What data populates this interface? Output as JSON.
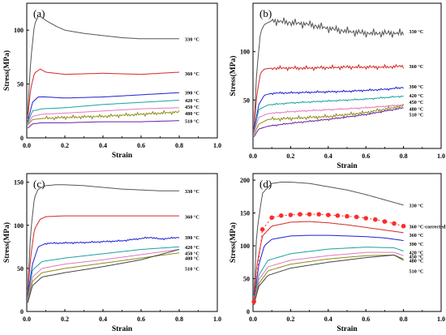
{
  "figure": {
    "panels": [
      {
        "label": "(a)"
      },
      {
        "label": "(b)"
      },
      {
        "label": "(c)"
      },
      {
        "label": "(d)"
      }
    ]
  },
  "chart_data": [
    {
      "type": "line",
      "panel_label": "(a)",
      "xlabel": "Strain",
      "ylabel": "Stress(MPa)",
      "xlim": [
        0.0,
        1.0
      ],
      "ylim": [
        0,
        125
      ],
      "xticks": [
        "0.0",
        "0.2",
        "0.4",
        "0.6",
        "0.8",
        "1.0"
      ],
      "yticks": [
        "0",
        "50",
        "100"
      ],
      "ytick_values": [
        0,
        50,
        100
      ],
      "grid": false,
      "legend": "labels at right end of curves",
      "series": [
        {
          "name": "330 °C",
          "color": "#555555",
          "noise": 0,
          "x": [
            0.005,
            0.02,
            0.04,
            0.06,
            0.08,
            0.1,
            0.15,
            0.2,
            0.3,
            0.4,
            0.5,
            0.6,
            0.7,
            0.8
          ],
          "y": [
            22,
            70,
            105,
            113,
            112,
            109,
            104,
            100,
            97,
            95,
            93,
            92,
            92,
            92
          ]
        },
        {
          "name": "360 °C",
          "color": "#d62728",
          "noise": 0,
          "x": [
            0.005,
            0.02,
            0.04,
            0.07,
            0.1,
            0.2,
            0.4,
            0.6,
            0.8
          ],
          "y": [
            18,
            45,
            60,
            64,
            61,
            59,
            60,
            59,
            61
          ]
        },
        {
          "name": "390 °C",
          "color": "#1f1fd6",
          "noise": 0,
          "x": [
            0.005,
            0.03,
            0.06,
            0.1,
            0.2,
            0.4,
            0.6,
            0.8
          ],
          "y": [
            15,
            33,
            38,
            38,
            37,
            38,
            40,
            42
          ]
        },
        {
          "name": "420 °C",
          "color": "#17a2a2",
          "noise": 0,
          "x": [
            0.005,
            0.03,
            0.08,
            0.2,
            0.4,
            0.6,
            0.8
          ],
          "y": [
            14,
            25,
            27,
            28,
            31,
            33,
            35
          ]
        },
        {
          "name": "450 °C",
          "color": "#e377c2",
          "noise": 0,
          "x": [
            0.005,
            0.03,
            0.08,
            0.2,
            0.4,
            0.6,
            0.8
          ],
          "y": [
            13,
            20,
            22,
            23,
            25,
            27,
            28
          ]
        },
        {
          "name": "480 °C",
          "color": "#8c8c1a",
          "noise": 1.2,
          "x": [
            0.005,
            0.03,
            0.08,
            0.2,
            0.4,
            0.6,
            0.8
          ],
          "y": [
            12,
            17,
            18,
            19,
            20,
            22,
            24
          ]
        },
        {
          "name": "510 °C",
          "color": "#6a1fa8",
          "noise": 0,
          "x": [
            0.005,
            0.03,
            0.08,
            0.2,
            0.4,
            0.6,
            0.8
          ],
          "y": [
            9,
            13,
            14,
            14,
            15,
            15,
            16
          ]
        }
      ],
      "labels": [
        {
          "text": "330 °C",
          "y": 92
        },
        {
          "text": "360 °C",
          "y": 60
        },
        {
          "text": "390 °C",
          "y": 42
        },
        {
          "text": "420 °C",
          "y": 35
        },
        {
          "text": "450 °C",
          "y": 29
        },
        {
          "text": "480 °C",
          "y": 23
        },
        {
          "text": "510 °C",
          "y": 16
        }
      ]
    },
    {
      "type": "line",
      "panel_label": "(b)",
      "xlabel": "Strain",
      "ylabel": "Stress(MPa)",
      "xlim": [
        0.0,
        1.0
      ],
      "ylim": [
        0,
        150
      ],
      "xticks": [
        "0.0",
        "0.2",
        "0.4",
        "0.6",
        "0.8",
        "1.0"
      ],
      "yticks": [
        "50",
        "100"
      ],
      "ytick_values": [
        50,
        100
      ],
      "grid": false,
      "legend": "labels at right end of curves",
      "series": [
        {
          "name": "330 °C",
          "color": "#555555",
          "noise": 3,
          "x": [
            0.005,
            0.02,
            0.04,
            0.06,
            0.1,
            0.15,
            0.2,
            0.3,
            0.4,
            0.5,
            0.6,
            0.7,
            0.8
          ],
          "y": [
            20,
            80,
            120,
            128,
            132,
            131,
            130,
            128,
            124,
            121,
            119,
            119,
            119
          ]
        },
        {
          "name": "360 °C",
          "color": "#d62728",
          "noise": 1.5,
          "x": [
            0.005,
            0.02,
            0.04,
            0.06,
            0.1,
            0.3,
            0.5,
            0.7,
            0.8
          ],
          "y": [
            20,
            55,
            78,
            82,
            83,
            83,
            84,
            84,
            85
          ]
        },
        {
          "name": "390 °C",
          "color": "#1f1fd6",
          "noise": 0.8,
          "x": [
            0.005,
            0.03,
            0.06,
            0.1,
            0.3,
            0.5,
            0.7,
            0.8
          ],
          "y": [
            18,
            45,
            55,
            57,
            58,
            59,
            61,
            63
          ]
        },
        {
          "name": "420 °C",
          "color": "#17a2a2",
          "noise": 0.6,
          "x": [
            0.005,
            0.03,
            0.08,
            0.2,
            0.4,
            0.6,
            0.8
          ],
          "y": [
            17,
            40,
            45,
            47,
            49,
            51,
            54
          ]
        },
        {
          "name": "450 °C",
          "color": "#e377c2",
          "noise": 0.6,
          "x": [
            0.005,
            0.03,
            0.08,
            0.2,
            0.4,
            0.6,
            0.8
          ],
          "y": [
            16,
            32,
            36,
            38,
            40,
            42,
            45
          ]
        },
        {
          "name": "480 °C",
          "color": "#8c8c1a",
          "noise": 1.4,
          "x": [
            0.005,
            0.03,
            0.08,
            0.2,
            0.4,
            0.6,
            0.8
          ],
          "y": [
            14,
            25,
            30,
            31,
            33,
            37,
            44
          ]
        },
        {
          "name": "510 °C",
          "color": "#6a1fa8",
          "noise": 0.6,
          "x": [
            0.005,
            0.03,
            0.08,
            0.2,
            0.4,
            0.6,
            0.8
          ],
          "y": [
            12,
            20,
            23,
            26,
            30,
            35,
            42
          ]
        }
      ],
      "labels": [
        {
          "text": "330 °C",
          "y": 121
        },
        {
          "text": "360 °C",
          "y": 85
        },
        {
          "text": "390 °C",
          "y": 64
        },
        {
          "text": "420 °C",
          "y": 55
        },
        {
          "text": "450 °C",
          "y": 48
        },
        {
          "text": "480 °C",
          "y": 41
        },
        {
          "text": "510 °C",
          "y": 35
        }
      ]
    },
    {
      "type": "line",
      "panel_label": "(c)",
      "xlabel": "Strain",
      "ylabel": "Stress(MPa)",
      "xlim": [
        0.0,
        1.0
      ],
      "ylim": [
        0,
        160
      ],
      "xticks": [
        "0.0",
        "0.2",
        "0.4",
        "0.6",
        "0.8",
        "1.0"
      ],
      "yticks": [
        "0",
        "50",
        "100",
        "150"
      ],
      "ytick_values": [
        0,
        50,
        100,
        150
      ],
      "grid": false,
      "legend": "labels at right end of curves",
      "series": [
        {
          "name": "330 °C",
          "color": "#555555",
          "noise": 0,
          "x": [
            0.005,
            0.02,
            0.04,
            0.06,
            0.1,
            0.15,
            0.2,
            0.3,
            0.4,
            0.5,
            0.6,
            0.7,
            0.8
          ],
          "y": [
            25,
            90,
            132,
            142,
            146,
            147,
            147,
            146,
            144,
            142,
            141,
            140,
            140
          ]
        },
        {
          "name": "360 °C",
          "color": "#d62728",
          "noise": 0,
          "x": [
            0.005,
            0.02,
            0.04,
            0.07,
            0.1,
            0.2,
            0.3,
            0.5,
            0.7,
            0.8
          ],
          "y": [
            20,
            62,
            95,
            107,
            110,
            111,
            111,
            111,
            111,
            111
          ]
        },
        {
          "name": "390 °C",
          "color": "#1f1fd6",
          "noise": 0.7,
          "x": [
            0.005,
            0.03,
            0.06,
            0.1,
            0.3,
            0.5,
            0.65,
            0.7,
            0.8
          ],
          "y": [
            18,
            55,
            75,
            79,
            80,
            82,
            86,
            84,
            86
          ]
        },
        {
          "name": "420 °C",
          "color": "#17a2a2",
          "noise": 0,
          "x": [
            0.005,
            0.03,
            0.08,
            0.2,
            0.4,
            0.6,
            0.8
          ],
          "y": [
            16,
            48,
            58,
            62,
            67,
            72,
            75
          ]
        },
        {
          "name": "450 °C",
          "color": "#e377c2",
          "noise": 0,
          "x": [
            0.005,
            0.03,
            0.08,
            0.2,
            0.4,
            0.6,
            0.8
          ],
          "y": [
            14,
            40,
            50,
            55,
            60,
            66,
            72
          ]
        },
        {
          "name": "480 °C",
          "color": "#8c8c1a",
          "noise": 0,
          "x": [
            0.005,
            0.03,
            0.08,
            0.2,
            0.4,
            0.6,
            0.8
          ],
          "y": [
            12,
            35,
            45,
            50,
            56,
            62,
            68
          ]
        },
        {
          "name": "510 °C",
          "color": "#444444",
          "noise": 0,
          "x": [
            0.005,
            0.03,
            0.08,
            0.2,
            0.4,
            0.6,
            0.8
          ],
          "y": [
            10,
            30,
            40,
            45,
            52,
            60,
            72
          ]
        }
      ],
      "labels": [
        {
          "text": "330 °C",
          "y": 140
        },
        {
          "text": "360 °C",
          "y": 110
        },
        {
          "text": "390 °C",
          "y": 86
        },
        {
          "text": "420 °C",
          "y": 75
        },
        {
          "text": "450 °C",
          "y": 68
        },
        {
          "text": "480 °C",
          "y": 62
        },
        {
          "text": "510 °C",
          "y": 50
        }
      ]
    },
    {
      "type": "line",
      "panel_label": "(d)",
      "xlabel": "Strain",
      "ylabel": "Stress(MPa)",
      "xlim": [
        0.0,
        1.0
      ],
      "ylim": [
        0,
        210
      ],
      "xticks": [
        "0.0",
        "0.2",
        "0.4",
        "0.6",
        "0.8",
        "1.0"
      ],
      "yticks": [
        "0",
        "50",
        "100",
        "150",
        "200"
      ],
      "ytick_values": [
        0,
        50,
        100,
        150,
        200
      ],
      "grid": false,
      "legend": "labels at right end of curves",
      "series": [
        {
          "name": "330 °C",
          "color": "#555555",
          "noise": 0,
          "x": [
            0.005,
            0.02,
            0.05,
            0.1,
            0.15,
            0.2,
            0.3,
            0.4,
            0.5,
            0.6,
            0.7,
            0.8
          ],
          "y": [
            25,
            120,
            180,
            195,
            197,
            197,
            195,
            190,
            185,
            178,
            170,
            162
          ]
        },
        {
          "name": "360 °C",
          "color": "#d62728",
          "noise": 0,
          "x": [
            0.005,
            0.02,
            0.05,
            0.1,
            0.2,
            0.3,
            0.4,
            0.5,
            0.6,
            0.7,
            0.8
          ],
          "y": [
            15,
            70,
            115,
            130,
            136,
            137,
            135,
            132,
            128,
            124,
            120
          ]
        },
        {
          "name": "390 °C",
          "color": "#1f1fd6",
          "noise": 0,
          "x": [
            0.005,
            0.03,
            0.06,
            0.1,
            0.2,
            0.3,
            0.4,
            0.5,
            0.6,
            0.7,
            0.8
          ],
          "y": [
            15,
            70,
            100,
            110,
            115,
            116,
            116,
            115,
            114,
            112,
            108
          ]
        },
        {
          "name": "420 °C",
          "color": "#17a2a2",
          "noise": 0,
          "x": [
            0.005,
            0.03,
            0.08,
            0.2,
            0.4,
            0.6,
            0.75,
            0.8
          ],
          "y": [
            14,
            55,
            78,
            88,
            95,
            98,
            97,
            92
          ]
        },
        {
          "name": "450 °C",
          "color": "#e377c2",
          "noise": 0,
          "x": [
            0.005,
            0.03,
            0.08,
            0.2,
            0.4,
            0.6,
            0.75,
            0.8
          ],
          "y": [
            12,
            48,
            68,
            78,
            85,
            90,
            90,
            85
          ]
        },
        {
          "name": "480 °C",
          "color": "#8c8c1a",
          "noise": 0,
          "x": [
            0.005,
            0.03,
            0.08,
            0.2,
            0.4,
            0.6,
            0.75,
            0.8
          ],
          "y": [
            11,
            42,
            62,
            72,
            80,
            85,
            86,
            80
          ]
        },
        {
          "name": "510 °C",
          "color": "#444444",
          "noise": 0,
          "x": [
            0.005,
            0.03,
            0.08,
            0.2,
            0.4,
            0.6,
            0.75,
            0.8
          ],
          "y": [
            10,
            38,
            55,
            66,
            75,
            82,
            86,
            78
          ]
        },
        {
          "name": "360 °C-corrected",
          "color": "#ff2a2a",
          "noise": 0,
          "style": "markers",
          "x": [
            0.005,
            0.05,
            0.1,
            0.15,
            0.2,
            0.25,
            0.3,
            0.35,
            0.4,
            0.45,
            0.5,
            0.55,
            0.6,
            0.65,
            0.7,
            0.75,
            0.8
          ],
          "y": [
            15,
            125,
            143,
            146,
            147,
            148,
            148,
            148,
            147,
            146,
            145,
            144,
            142,
            140,
            137,
            134,
            130
          ]
        }
      ],
      "labels": [
        {
          "text": "330 °C",
          "y": 162
        },
        {
          "text": "360 °C-corrected",
          "y": 130
        },
        {
          "text": "360 °C",
          "y": 117
        },
        {
          "text": "390 °C",
          "y": 103
        },
        {
          "text": "420 °C",
          "y": 90
        },
        {
          "text": "450 °C",
          "y": 84
        },
        {
          "text": "480 °C",
          "y": 78
        },
        {
          "text": "510 °C",
          "y": 62
        }
      ]
    }
  ]
}
